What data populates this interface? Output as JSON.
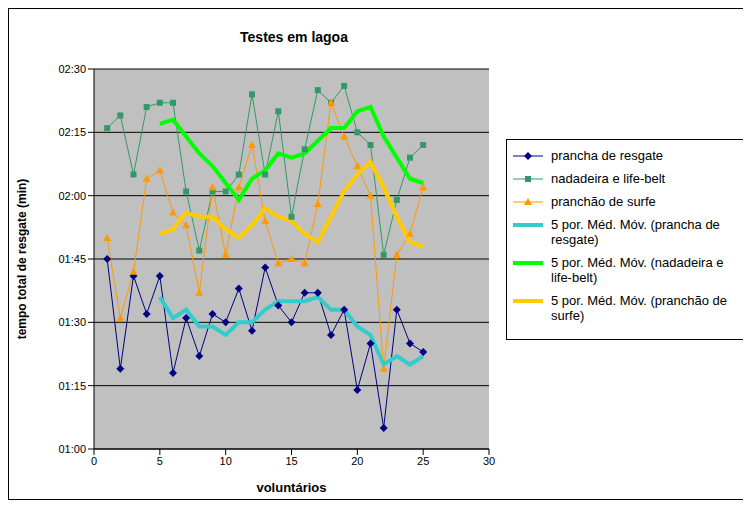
{
  "chart_data": {
    "type": "line",
    "title": "Testes em lagoa",
    "x_label": "voluntários",
    "y_label": "tempo total de resgate (min)",
    "x": [
      1,
      2,
      3,
      4,
      5,
      6,
      7,
      8,
      9,
      10,
      11,
      12,
      13,
      14,
      15,
      16,
      17,
      18,
      19,
      20,
      21,
      22,
      23,
      24,
      25
    ],
    "xlim": [
      0,
      30
    ],
    "xticks": [
      0,
      5,
      10,
      15,
      20,
      25,
      30
    ],
    "ylim": [
      60,
      150
    ],
    "yticks": [
      {
        "value": 60,
        "label": "01:00"
      },
      {
        "value": 75,
        "label": "01:15"
      },
      {
        "value": 90,
        "label": "01:30"
      },
      {
        "value": 105,
        "label": "01:45"
      },
      {
        "value": 120,
        "label": "02:00"
      },
      {
        "value": 135,
        "label": "02:15"
      },
      {
        "value": 150,
        "label": "02:30"
      }
    ],
    "grid": true,
    "legend": "right",
    "series": [
      {
        "name": "prancha de resgate",
        "color": "#000080",
        "marker": "diamond",
        "line_style": "thin",
        "values": [
          105,
          79,
          101,
          92,
          101,
          78,
          91,
          82,
          92,
          90,
          98,
          88,
          103,
          94,
          90,
          97,
          97,
          87,
          93,
          74,
          85,
          65,
          93,
          85,
          83
        ]
      },
      {
        "name": "nadadeira e life-belt",
        "color": "#339966",
        "marker": "square",
        "line_style": "thin",
        "values": [
          136,
          139,
          125,
          141,
          142,
          142,
          121,
          107,
          121,
          121,
          125,
          144,
          125,
          140,
          115,
          131,
          145,
          142,
          146,
          135,
          132,
          106,
          119,
          129,
          132
        ]
      },
      {
        "name": "pranchão de surfe",
        "color": "#FF9900",
        "marker": "triangle",
        "line_style": "thin",
        "values": [
          110,
          91,
          102,
          124,
          126,
          116,
          113,
          97,
          122,
          106,
          122,
          132,
          114,
          104,
          105,
          104,
          118,
          142,
          134,
          127,
          120,
          79,
          106,
          111,
          122
        ]
      },
      {
        "name": "5 por. Méd. Móv. (prancha de resgate)",
        "color": "#33CCCC",
        "marker": "none",
        "line_style": "thick",
        "values": [
          null,
          null,
          null,
          null,
          96,
          91,
          93,
          89,
          89,
          87,
          90,
          90,
          93,
          95,
          95,
          95,
          96,
          93,
          93,
          89,
          87,
          80,
          82,
          80,
          82
        ]
      },
      {
        "name": "5 por. Méd. Móv. (nadadeira e life-belt)",
        "color": "#00FF00",
        "marker": "none",
        "line_style": "thick",
        "values": [
          null,
          null,
          null,
          null,
          137,
          138,
          134,
          130,
          127,
          123,
          119,
          124,
          126,
          130,
          129,
          130,
          133,
          136,
          136,
          140,
          141,
          134,
          129,
          124,
          123
        ]
      },
      {
        "name": "5 por. Méd. Móv. (pranchão de surfe)",
        "color": "#FFCC00",
        "marker": "none",
        "line_style": "thick",
        "values": [
          null,
          null,
          null,
          null,
          111,
          112,
          116,
          115,
          115,
          112,
          110,
          113,
          117,
          115,
          114,
          111,
          109,
          115,
          121,
          125,
          128,
          122,
          115,
          109,
          108
        ]
      }
    ]
  }
}
